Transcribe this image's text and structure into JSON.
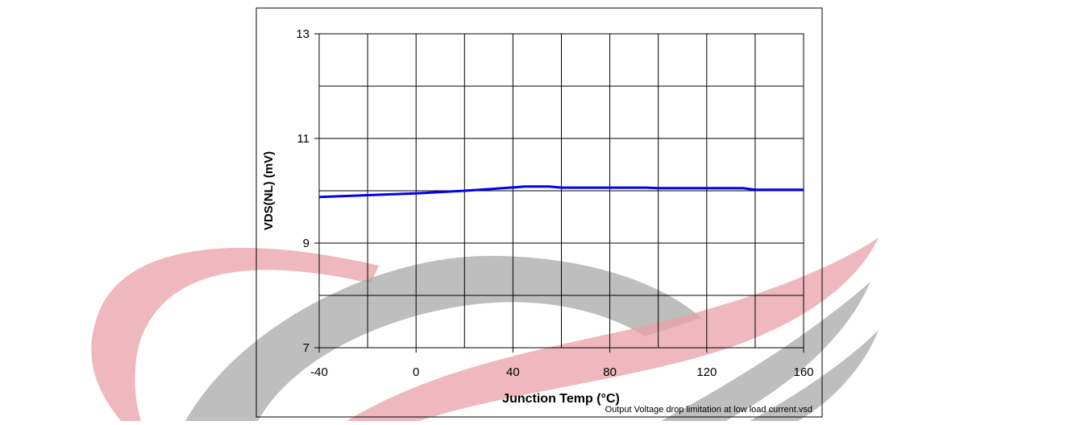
{
  "chart_data": {
    "type": "line",
    "x_label": "Junction Temp (°C)",
    "y_label": "VDS(NL)  (mV)",
    "footnote": "Output Voltage drop limitation at low load current.vsd",
    "series": [
      {
        "color": "#0000ee",
        "x": [
          -40,
          0,
          20,
          30,
          45,
          55,
          60,
          95,
          100,
          135,
          140,
          160
        ],
        "values": [
          9.88,
          9.95,
          10.0,
          10.03,
          10.08,
          10.08,
          10.06,
          10.06,
          10.05,
          10.05,
          10.02,
          10.02
        ]
      }
    ],
    "xlim": [
      -40,
      160
    ],
    "xticks": [
      -40,
      0,
      40,
      80,
      120,
      160
    ],
    "xminorticks": [
      -20,
      20,
      60,
      100,
      140
    ],
    "ylim": [
      7,
      13
    ],
    "yticks": [
      7,
      9,
      11,
      13
    ],
    "yminorticks": [
      8,
      10,
      12
    ],
    "grid": true
  }
}
